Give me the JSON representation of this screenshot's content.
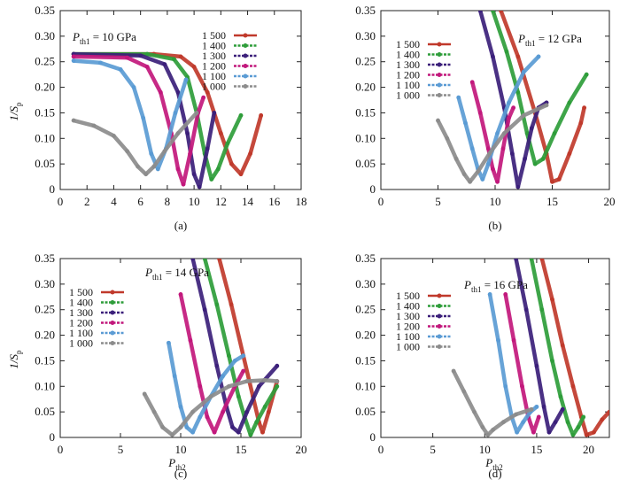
{
  "figure": {
    "ylabel_main": "1/S",
    "ylabel_sub": "p",
    "xlabel_main": "P",
    "xlabel_sub": "th2"
  },
  "chart_data": [
    {
      "type": "line",
      "panel_label": "(a)",
      "title_main": "P",
      "title_sub": "th1",
      "title_rest": "= 10 GPa",
      "xlim": [
        0,
        18
      ],
      "xticks": [
        "0",
        "2",
        "4",
        "6",
        "8",
        "10",
        "12",
        "14",
        "16",
        "18"
      ],
      "ylim": [
        0,
        0.35
      ],
      "yticks": [
        "0",
        "0.05",
        "0.10",
        "0.15",
        "0.20",
        "0.25",
        "0.30",
        "0.35"
      ],
      "legend_position": "top-right",
      "series": [
        {
          "name": "1 500",
          "color": "#c0392b",
          "x": [
            1,
            7,
            9,
            10,
            11,
            12,
            12.8,
            13.5,
            14.2,
            15
          ],
          "y": [
            0.265,
            0.265,
            0.26,
            0.24,
            0.19,
            0.11,
            0.05,
            0.03,
            0.07,
            0.145
          ]
        },
        {
          "name": "1 400",
          "color": "#2e9d3a",
          "x": [
            1,
            6.5,
            8.5,
            9.5,
            10.2,
            10.8,
            11.3,
            11.8,
            12.5,
            13.5
          ],
          "y": [
            0.265,
            0.265,
            0.255,
            0.22,
            0.15,
            0.07,
            0.02,
            0.04,
            0.09,
            0.145
          ]
        },
        {
          "name": "1 300",
          "color": "#3b1f7a",
          "x": [
            1,
            6,
            7.8,
            8.8,
            9.5,
            10,
            10.4,
            11,
            11.5
          ],
          "y": [
            0.265,
            0.262,
            0.245,
            0.19,
            0.11,
            0.03,
            0.005,
            0.08,
            0.15
          ]
        },
        {
          "name": "1 200",
          "color": "#c2187c",
          "x": [
            1,
            5,
            6.5,
            7.5,
            8.3,
            8.8,
            9.2,
            9.7,
            10.3,
            10.7
          ],
          "y": [
            0.26,
            0.258,
            0.24,
            0.19,
            0.11,
            0.04,
            0.01,
            0.07,
            0.15,
            0.18
          ]
        },
        {
          "name": "1 100",
          "color": "#5a9bd4",
          "x": [
            1,
            3,
            4.5,
            5.5,
            6.2,
            6.8,
            7.3,
            7.9,
            8.6,
            9.4
          ],
          "y": [
            0.252,
            0.248,
            0.235,
            0.2,
            0.14,
            0.07,
            0.04,
            0.08,
            0.15,
            0.215
          ]
        },
        {
          "name": "1 000",
          "color": "#8c8c8c",
          "x": [
            1,
            2.5,
            4,
            5,
            5.8,
            6.4,
            7,
            7.8,
            8.8,
            10.2
          ],
          "y": [
            0.135,
            0.125,
            0.105,
            0.075,
            0.045,
            0.03,
            0.045,
            0.075,
            0.11,
            0.15
          ]
        }
      ]
    },
    {
      "type": "line",
      "panel_label": "(b)",
      "title_main": "P",
      "title_sub": "th1",
      "title_rest": "= 12 GPa",
      "xlim": [
        0,
        20
      ],
      "xticks": [
        "0",
        "5",
        "10",
        "15",
        "20"
      ],
      "ylim": [
        0,
        0.35
      ],
      "yticks": [
        "0",
        "0.05",
        "0.10",
        "0.15",
        "0.20",
        "0.25",
        "0.30",
        "0.35"
      ],
      "legend_position": "top-left",
      "series": [
        {
          "name": "1 500",
          "color": "#c0392b",
          "x": [
            10.5,
            12,
            13.5,
            14.5,
            15,
            15.6,
            16.5,
            17.5,
            17.8
          ],
          "y": [
            0.35,
            0.26,
            0.15,
            0.07,
            0.015,
            0.02,
            0.07,
            0.13,
            0.16
          ]
        },
        {
          "name": "1 400",
          "color": "#2e9d3a",
          "x": [
            9.8,
            11,
            12,
            12.8,
            13.5,
            14.2,
            15.2,
            16.5,
            18
          ],
          "y": [
            0.35,
            0.27,
            0.19,
            0.11,
            0.05,
            0.06,
            0.11,
            0.17,
            0.225
          ]
        },
        {
          "name": "1 300",
          "color": "#3b1f7a",
          "x": [
            8.7,
            9.8,
            10.8,
            11.5,
            12,
            12.6,
            13.2,
            13.8,
            14.5
          ],
          "y": [
            0.35,
            0.26,
            0.16,
            0.07,
            0.005,
            0.06,
            0.12,
            0.16,
            0.17
          ]
        },
        {
          "name": "1 200",
          "color": "#c2187c",
          "x": [
            8,
            8.7,
            9.4,
            9.8,
            10.2,
            10.7,
            11.2,
            11.6
          ],
          "y": [
            0.21,
            0.15,
            0.08,
            0.04,
            0.015,
            0.08,
            0.14,
            0.16
          ]
        },
        {
          "name": "1 100",
          "color": "#5a9bd4",
          "x": [
            6.8,
            7.4,
            8,
            8.5,
            8.9,
            9.4,
            10.2,
            11.2,
            12.5,
            13.8
          ],
          "y": [
            0.18,
            0.13,
            0.08,
            0.04,
            0.02,
            0.05,
            0.11,
            0.17,
            0.23,
            0.26
          ]
        },
        {
          "name": "1 000",
          "color": "#8c8c8c",
          "x": [
            5,
            5.8,
            6.6,
            7.3,
            7.8,
            8.5,
            9.5,
            10.8,
            12.5,
            14.5
          ],
          "y": [
            0.135,
            0.1,
            0.06,
            0.03,
            0.015,
            0.035,
            0.07,
            0.11,
            0.145,
            0.165
          ]
        }
      ]
    },
    {
      "type": "line",
      "panel_label": "(c)",
      "title_main": "P",
      "title_sub": "th1",
      "title_rest": "= 14 GPa",
      "xlim": [
        0,
        20
      ],
      "xticks": [
        "0",
        "5",
        "10",
        "15",
        "20"
      ],
      "ylim": [
        0,
        0.35
      ],
      "yticks": [
        "0",
        "0.05",
        "0.10",
        "0.15",
        "0.20",
        "0.25",
        "0.30",
        "0.35"
      ],
      "legend_position": "top-left",
      "series": [
        {
          "name": "1 500",
          "color": "#c0392b",
          "x": [
            13.2,
            14.2,
            15.2,
            16,
            16.5,
            16.8,
            17.3,
            18
          ],
          "y": [
            0.35,
            0.26,
            0.16,
            0.08,
            0.03,
            0.01,
            0.05,
            0.11
          ]
        },
        {
          "name": "1 400",
          "color": "#2e9d3a",
          "x": [
            12,
            13,
            14,
            14.8,
            15.3,
            15.8,
            16.3,
            17,
            18
          ],
          "y": [
            0.35,
            0.26,
            0.16,
            0.08,
            0.04,
            0.005,
            0.03,
            0.06,
            0.1
          ]
        },
        {
          "name": "1 300",
          "color": "#3b1f7a",
          "x": [
            11,
            12,
            13,
            13.8,
            14.3,
            14.8,
            15.5,
            16.5,
            18
          ],
          "y": [
            0.35,
            0.25,
            0.14,
            0.06,
            0.02,
            0.01,
            0.05,
            0.1,
            0.14
          ]
        },
        {
          "name": "1 200",
          "color": "#c2187c",
          "x": [
            10,
            10.8,
            11.6,
            12.2,
            12.8,
            13.5,
            14.5,
            15.2
          ],
          "y": [
            0.28,
            0.19,
            0.1,
            0.04,
            0.01,
            0.05,
            0.1,
            0.13
          ]
        },
        {
          "name": "1 100",
          "color": "#5a9bd4",
          "x": [
            9,
            9.5,
            10,
            10.5,
            11,
            11.6,
            12.5,
            13.5,
            14.5,
            15.2
          ],
          "y": [
            0.185,
            0.12,
            0.06,
            0.02,
            0.01,
            0.04,
            0.08,
            0.12,
            0.15,
            0.16
          ]
        },
        {
          "name": "1 000",
          "color": "#8c8c8c",
          "x": [
            7,
            7.8,
            8.5,
            9.3,
            10,
            11,
            12.5,
            14,
            15.5,
            17,
            18
          ],
          "y": [
            0.085,
            0.05,
            0.02,
            0.005,
            0.02,
            0.05,
            0.08,
            0.1,
            0.11,
            0.112,
            0.11
          ]
        }
      ]
    },
    {
      "type": "line",
      "panel_label": "(d)",
      "title_main": "P",
      "title_sub": "th1",
      "title_rest": "= 16 GPa",
      "xlim": [
        0,
        22
      ],
      "xticks": [
        "0",
        "5",
        "10",
        "15",
        "20"
      ],
      "ylim": [
        0,
        0.35
      ],
      "yticks": [
        "0",
        "0.05",
        "0.10",
        "0.15",
        "0.20",
        "0.25",
        "0.30",
        "0.35"
      ],
      "legend_position": "top-left",
      "series": [
        {
          "name": "1 500",
          "color": "#c0392b",
          "x": [
            15.5,
            16.5,
            17.5,
            18.5,
            19.3,
            19.8,
            20.5,
            21.3,
            22
          ],
          "y": [
            0.35,
            0.27,
            0.18,
            0.1,
            0.04,
            0.005,
            0.01,
            0.035,
            0.05
          ]
        },
        {
          "name": "1 400",
          "color": "#2e9d3a",
          "x": [
            14.5,
            15.5,
            16.5,
            17.3,
            18,
            18.5,
            19,
            19.5
          ],
          "y": [
            0.35,
            0.25,
            0.15,
            0.08,
            0.03,
            0.005,
            0.02,
            0.04
          ]
        },
        {
          "name": "1 300",
          "color": "#3b1f7a",
          "x": [
            13,
            14,
            15,
            15.7,
            16.2,
            16.8,
            17.5
          ],
          "y": [
            0.35,
            0.25,
            0.14,
            0.06,
            0.01,
            0.03,
            0.055
          ]
        },
        {
          "name": "1 200",
          "color": "#c2187c",
          "x": [
            12,
            12.8,
            13.6,
            14.2,
            14.7,
            15.2
          ],
          "y": [
            0.28,
            0.19,
            0.1,
            0.04,
            0.01,
            0.04
          ]
        },
        {
          "name": "1 100",
          "color": "#5a9bd4",
          "x": [
            10.5,
            11.3,
            12,
            12.6,
            13.1,
            13.7,
            14.4,
            15
          ],
          "y": [
            0.28,
            0.19,
            0.1,
            0.04,
            0.01,
            0.03,
            0.05,
            0.06
          ]
        },
        {
          "name": "1 000",
          "color": "#8c8c8c",
          "x": [
            7,
            8,
            9,
            9.8,
            10.3,
            10.8,
            11.8,
            13,
            14.5
          ],
          "y": [
            0.13,
            0.09,
            0.05,
            0.02,
            0.005,
            0.015,
            0.03,
            0.045,
            0.055
          ]
        }
      ]
    }
  ]
}
